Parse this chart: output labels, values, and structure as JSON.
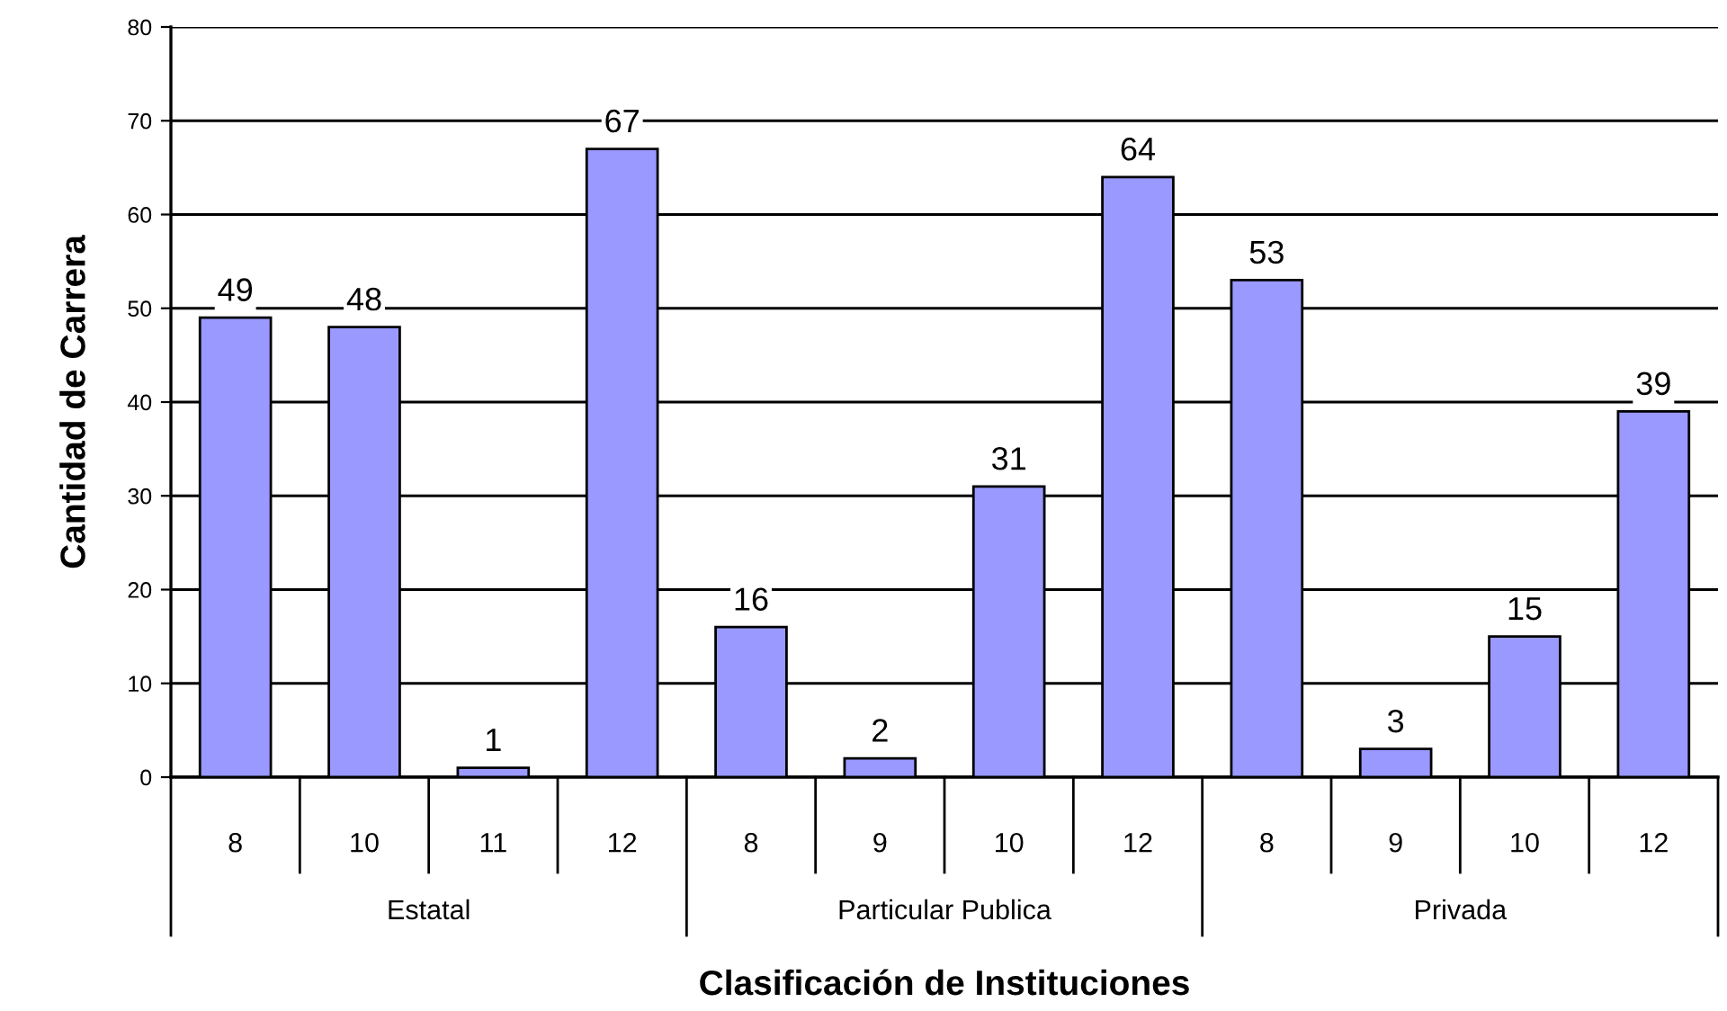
{
  "chart_data": {
    "type": "bar",
    "xlabel": "Clasificación de Instituciones",
    "ylabel": "Cantidad de Carrera",
    "categories": [
      "8",
      "10",
      "11",
      "12",
      "8",
      "9",
      "10",
      "12",
      "8",
      "9",
      "10",
      "12"
    ],
    "values": [
      49,
      48,
      1,
      67,
      16,
      2,
      31,
      64,
      53,
      3,
      15,
      39
    ],
    "color": "#9999ff",
    "data_labels": true,
    "grid": "y",
    "legend": false,
    "ylim": [
      0,
      80
    ],
    "yticks": [
      0,
      10,
      20,
      30,
      40,
      50,
      60,
      70,
      80
    ],
    "annotations": [
      "Estatal",
      "Particular Publica",
      "Privada"
    ]
  }
}
